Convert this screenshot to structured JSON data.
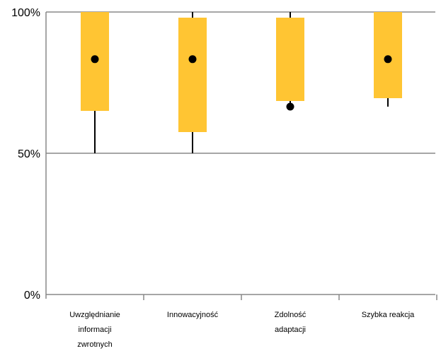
{
  "chart_data": {
    "type": "boxplot",
    "title": "",
    "xlabel": "",
    "ylabel": "",
    "ylim": [
      0,
      100
    ],
    "y_ticks": [
      {
        "value": 0,
        "label": "0%"
      },
      {
        "value": 50,
        "label": "50%"
      },
      {
        "value": 100,
        "label": "100%"
      }
    ],
    "grid": true,
    "categories": [
      {
        "label_lines": [
          "Uwzględnianie",
          "informacji",
          "zwrotnych"
        ]
      },
      {
        "label_lines": [
          "Innowacyjność"
        ]
      },
      {
        "label_lines": [
          "Zdolność",
          "adaptacji"
        ]
      },
      {
        "label_lines": [
          "Szybka reakcja"
        ]
      }
    ],
    "boxes": [
      {
        "whisker_low": 50,
        "q1": 65,
        "q3": 100,
        "whisker_high": 100,
        "mean": 83.3
      },
      {
        "whisker_low": 50,
        "q1": 57.5,
        "q3": 98,
        "whisker_high": 100,
        "mean": 83.3
      },
      {
        "whisker_low": 67,
        "q1": 68.5,
        "q3": 98,
        "whisker_high": 100,
        "mean": 66.5
      },
      {
        "whisker_low": 66.5,
        "q1": 69.5,
        "q3": 100,
        "whisker_high": 100,
        "mean": 83.3
      }
    ],
    "colors": {
      "box": "#FFC533",
      "grid": "#888888",
      "axis": "#888888",
      "whisker": "#000000",
      "mean_marker": "#000000"
    }
  }
}
